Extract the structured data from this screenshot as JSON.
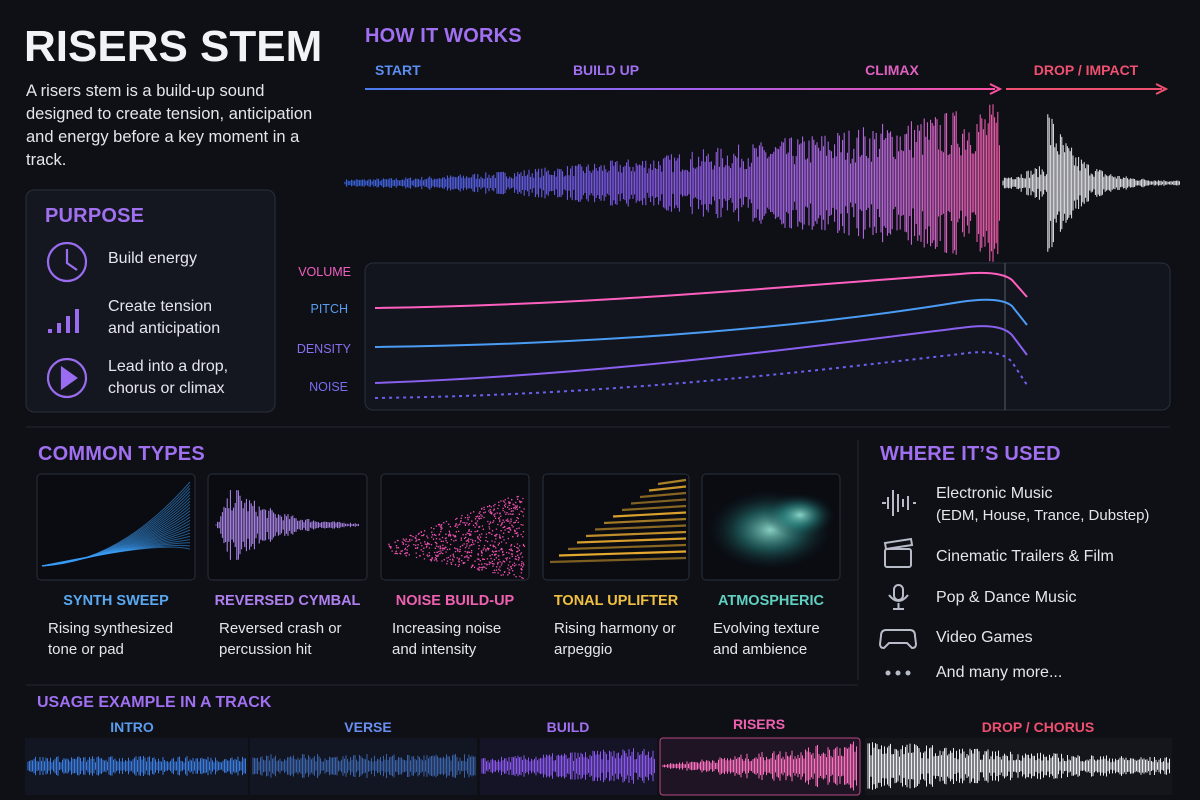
{
  "header": {
    "title": "RISERS STEM",
    "description": "A risers stem is a build-up sound designed to create tension, anticipation and energy before a key moment in a track."
  },
  "purpose": {
    "title": "PURPOSE",
    "items": [
      "Build energy",
      "Create tension and anticipation",
      "Lead into a drop, chorus or climax"
    ]
  },
  "how_it_works": {
    "title": "HOW IT WORKS",
    "stages": [
      "START",
      "BUILD UP",
      "CLIMAX",
      "DROP / IMPACT"
    ],
    "curves": [
      "VOLUME",
      "PITCH",
      "DENSITY",
      "NOISE"
    ]
  },
  "common_types": {
    "title": "COMMON TYPES",
    "items": [
      {
        "name": "SYNTH SWEEP",
        "description": "Rising synthesized tone or pad"
      },
      {
        "name": "REVERSED CYMBAL",
        "description": "Reversed crash or percussion hit"
      },
      {
        "name": "NOISE BUILD-UP",
        "description": "Increasing noise and intensity"
      },
      {
        "name": "TONAL UPLIFTER",
        "description": "Rising harmony or arpeggio"
      },
      {
        "name": "ATMOSPHERIC",
        "description": "Evolving texture and ambience"
      }
    ]
  },
  "where_used": {
    "title": "WHERE IT’S USED",
    "items": [
      {
        "label": "Electronic Music",
        "detail": "(EDM, House, Trance, Dubstep)"
      },
      {
        "label": "Cinematic Trailers & Film"
      },
      {
        "label": "Pop & Dance Music"
      },
      {
        "label": "Video Games"
      },
      {
        "label": "And many more..."
      }
    ]
  },
  "usage_example": {
    "title": "USAGE EXAMPLE IN A TRACK",
    "sections": [
      "INTRO",
      "VERSE",
      "BUILD",
      "RISERS",
      "DROP / CHORUS"
    ]
  }
}
